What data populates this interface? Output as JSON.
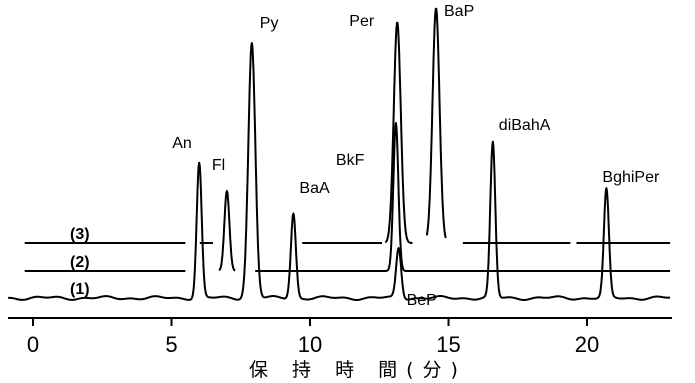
{
  "chart_data": {
    "type": "line",
    "title": "",
    "xlabel": "保 持 時 間(分)",
    "ylabel": "",
    "xlim": [
      0,
      23
    ],
    "xticks": [
      0,
      5,
      10,
      15,
      20
    ],
    "tick_labels": [
      "0",
      "5",
      "10",
      "15",
      "20"
    ],
    "grid": false,
    "series": [
      {
        "name": "(1)",
        "baseline": 0,
        "peaks": [
          {
            "x": 6.0,
            "height": 135
          },
          {
            "x": 7.9,
            "height": 255
          },
          {
            "x": 9.4,
            "height": 85
          },
          {
            "x": 13.2,
            "height": 50
          },
          {
            "x": 16.6,
            "height": 155
          },
          {
            "x": 20.7,
            "height": 108
          }
        ]
      },
      {
        "name": "(2)",
        "baseline": 27,
        "peaks": [
          {
            "x": 7.0,
            "height": 80
          },
          {
            "x": 13.1,
            "height": 148
          }
        ]
      },
      {
        "name": "(3)",
        "baseline": 55,
        "peaks": [
          {
            "x": 13.15,
            "height": 221
          },
          {
            "x": 14.55,
            "height": 235
          }
        ]
      }
    ],
    "peak_labels": [
      {
        "text": "An",
        "x": 6.0,
        "y": 150
      },
      {
        "text": "Fl",
        "x": 7.0,
        "y": 128
      },
      {
        "text": "Py",
        "x": 7.9,
        "y": 270
      },
      {
        "text": "BaA",
        "x": 9.4,
        "y": 105
      },
      {
        "text": "BkF",
        "x": 13.1,
        "y": 133
      },
      {
        "text": "Per",
        "x": 13.15,
        "y": 272
      },
      {
        "text": "BaP",
        "x": 14.55,
        "y": 282
      },
      {
        "text": "BeP",
        "x": 13.2,
        "y": -7
      },
      {
        "text": "diBahA",
        "x": 16.6,
        "y": 168
      },
      {
        "text": "BghiPer",
        "x": 20.7,
        "y": 116
      }
    ]
  }
}
